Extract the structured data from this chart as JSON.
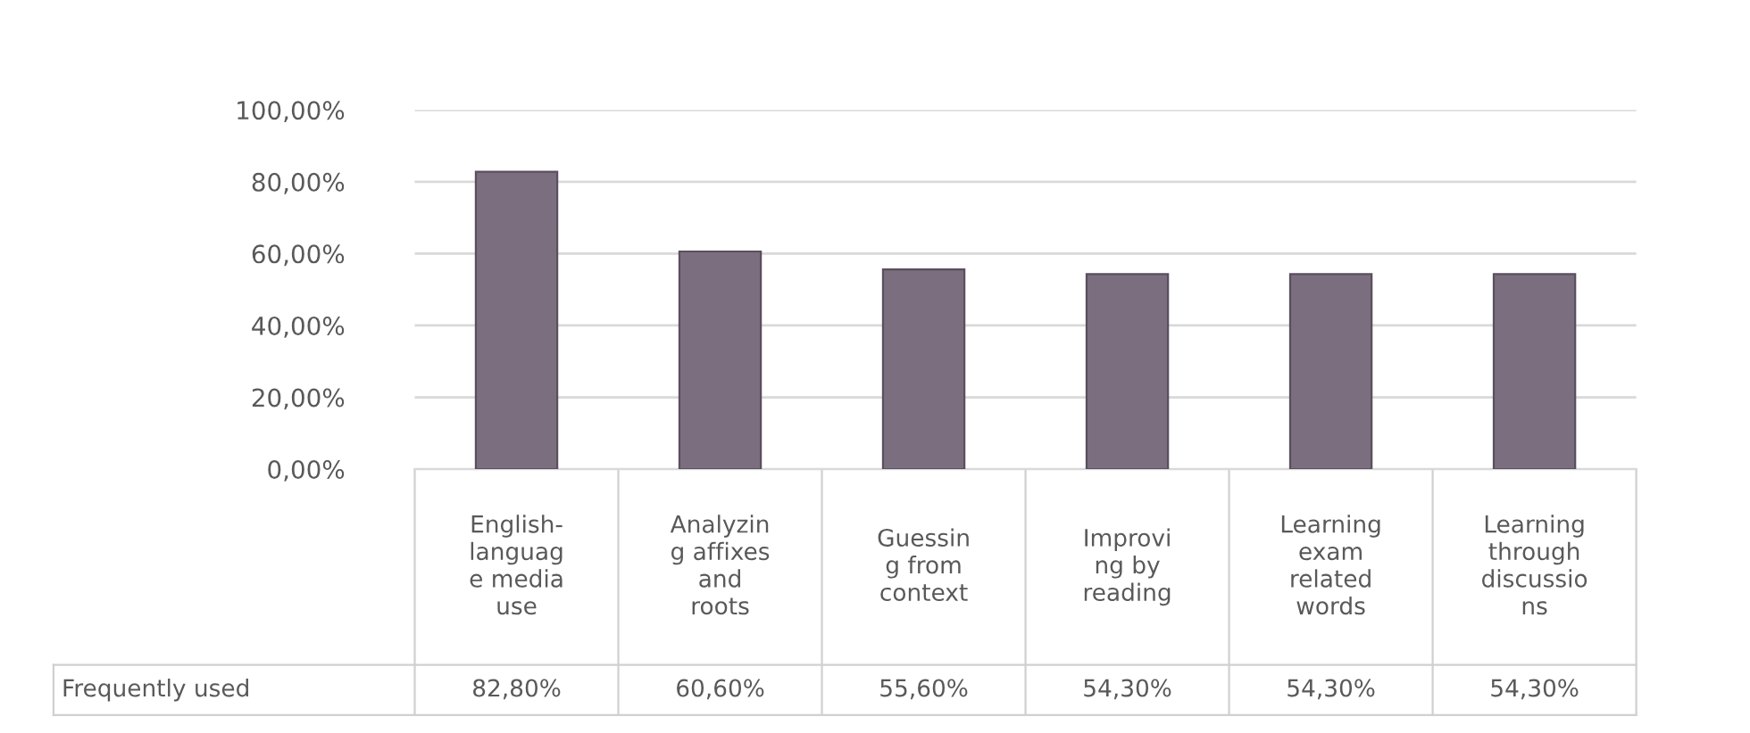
{
  "chart_data": {
    "type": "bar",
    "categories": [
      "English-\nlanguag\ne media\nuse",
      "Analyzin\ng affixes\nand\nroots",
      "Guessin\ng from\ncontext",
      "Improvi\nng by\nreading",
      "Learning\nexam\nrelated\nwords",
      "Learning\nthrough\ndiscussio\nns"
    ],
    "series": [
      {
        "name": "Frequently used",
        "color": "#7b6e7f",
        "values": [
          82.8,
          60.6,
          55.6,
          54.3,
          54.3,
          54.3
        ],
        "value_labels": [
          "82,80%",
          "60,60%",
          "55,60%",
          "54,30%",
          "54,30%",
          "54,30%"
        ]
      }
    ],
    "ylim": [
      0,
      100
    ],
    "yticks": [
      {
        "value": 0,
        "label": "0,00%"
      },
      {
        "value": 20,
        "label": "20,00%"
      },
      {
        "value": 40,
        "label": "40,00%"
      },
      {
        "value": 60,
        "label": "60,00%"
      },
      {
        "value": 80,
        "label": "80,00%"
      },
      {
        "value": 100,
        "label": "100,00%"
      }
    ],
    "grid": "y",
    "legend": false
  }
}
